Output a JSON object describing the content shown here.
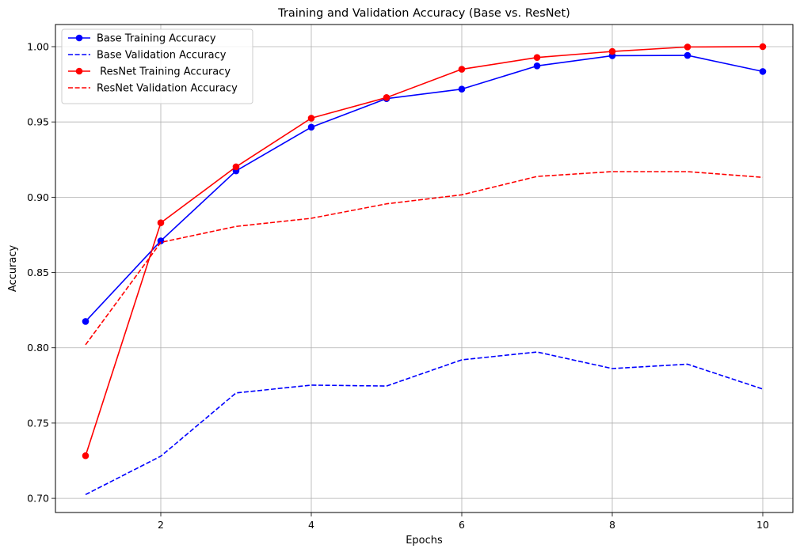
{
  "chart_data": {
    "type": "line",
    "title": "Training and Validation Accuracy (Base vs. ResNet)",
    "xlabel": "Epochs",
    "ylabel": "Accuracy",
    "xlim": [
      0.6,
      10.4
    ],
    "ylim": [
      0.6906,
      1.0147
    ],
    "xticks": [
      2,
      4,
      6,
      8,
      10
    ],
    "xtick_labels": [
      "2",
      "4",
      "6",
      "8",
      "10"
    ],
    "yticks": [
      0.7,
      0.75,
      0.8,
      0.85,
      0.9,
      0.95,
      1.0
    ],
    "ytick_labels": [
      "0.70",
      "0.75",
      "0.80",
      "0.85",
      "0.90",
      "0.95",
      "1.00"
    ],
    "grid": true,
    "legend_position": "top-left",
    "x": [
      1,
      2,
      3,
      4,
      5,
      6,
      7,
      8,
      9,
      10
    ],
    "series": [
      {
        "name": "Base Training Accuracy",
        "color": "#0000ff",
        "linestyle": "solid",
        "marker": "circle",
        "values": [
          0.8175,
          0.871,
          0.9175,
          0.9465,
          0.9655,
          0.9718,
          0.9872,
          0.994,
          0.9942,
          0.9835
        ]
      },
      {
        "name": "Base Validation Accuracy",
        "color": "#0000ff",
        "linestyle": "dashed",
        "marker": "none",
        "values": [
          0.7025,
          0.728,
          0.77,
          0.7752,
          0.7746,
          0.792,
          0.7972,
          0.7862,
          0.7891,
          0.7726
        ]
      },
      {
        "name": " ResNet Training Accuracy",
        "color": "#ff0000",
        "linestyle": "solid",
        "marker": "circle",
        "values": [
          0.7283,
          0.883,
          0.9202,
          0.9525,
          0.9662,
          0.985,
          0.9928,
          0.9968,
          0.9998,
          1.0
        ]
      },
      {
        "name": "ResNet Validation Accuracy",
        "color": "#ff0000",
        "linestyle": "dashed",
        "marker": "none",
        "values": [
          0.802,
          0.87,
          0.8806,
          0.886,
          0.8956,
          0.9016,
          0.9138,
          0.917,
          0.917,
          0.9132
        ]
      }
    ]
  }
}
